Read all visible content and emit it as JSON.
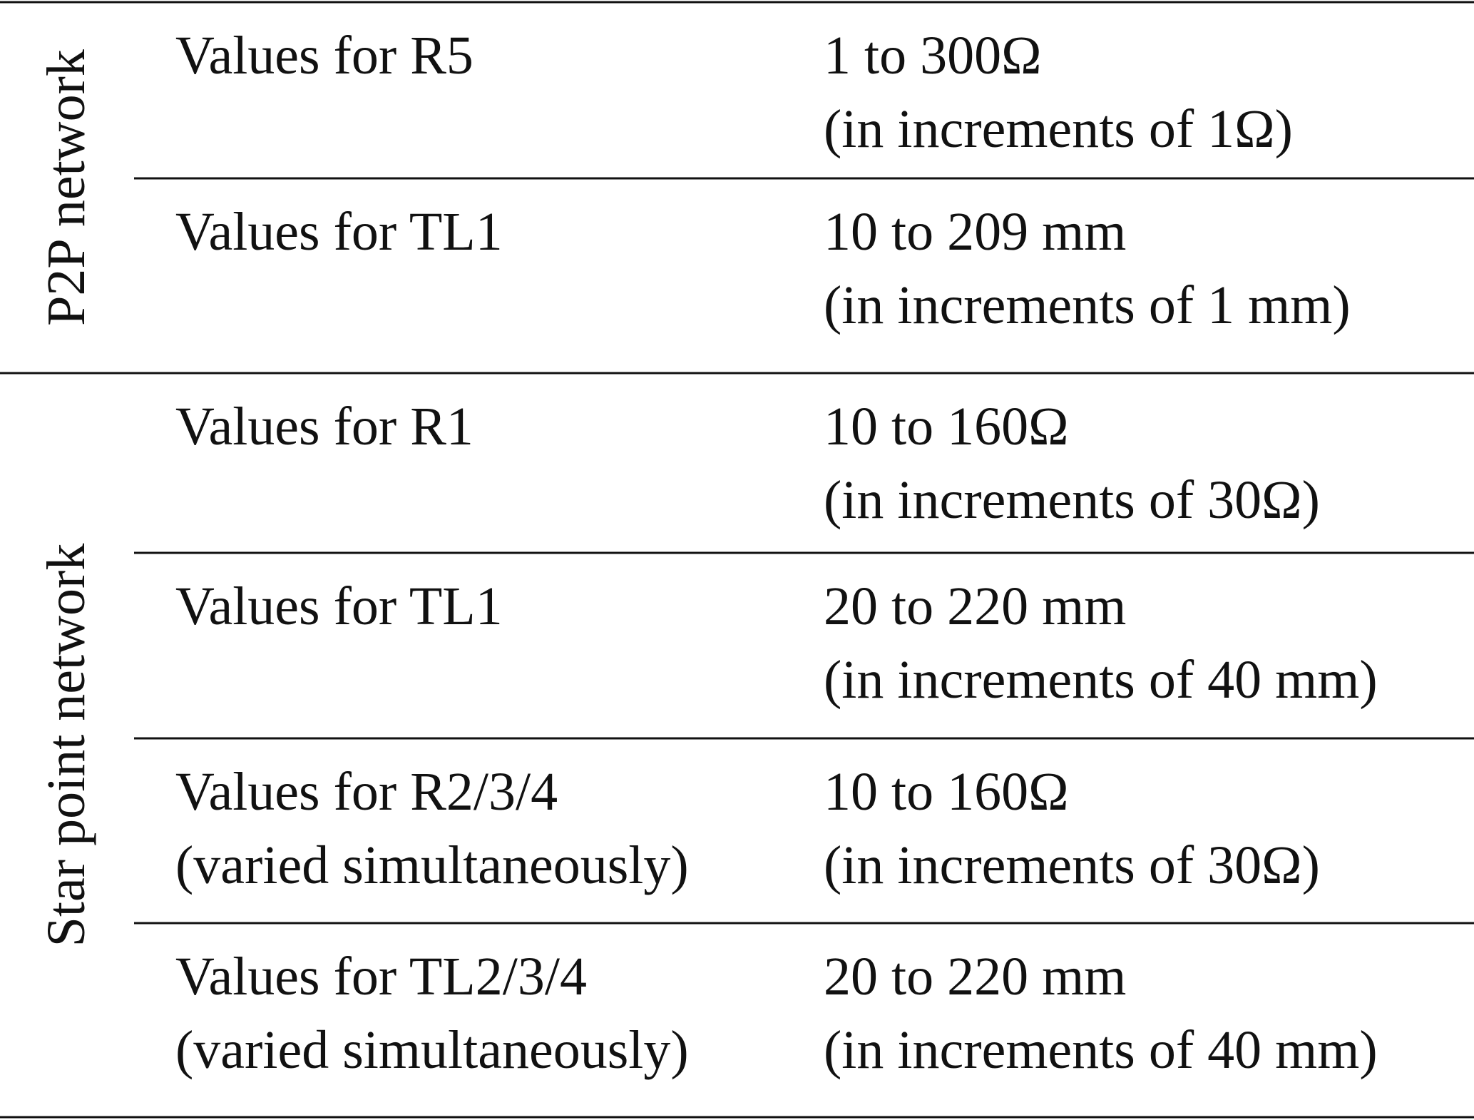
{
  "table": {
    "groups": [
      {
        "label": "P2P network",
        "rows": [
          {
            "parameter": [
              "Values for R5"
            ],
            "range": [
              "1 to 300Ω",
              "(in increments of 1Ω)"
            ]
          },
          {
            "parameter": [
              "Values for TL1"
            ],
            "range": [
              "10 to 209 mm",
              "(in increments of 1 mm)"
            ]
          }
        ]
      },
      {
        "label": "Star point network",
        "rows": [
          {
            "parameter": [
              "Values for R1"
            ],
            "range": [
              "10 to 160Ω",
              "(in increments of 30Ω)"
            ]
          },
          {
            "parameter": [
              "Values for TL1"
            ],
            "range": [
              "20 to 220 mm",
              "(in increments of 40 mm)"
            ]
          },
          {
            "parameter": [
              "Values for R2/3/4",
              "(varied simultaneously)"
            ],
            "range": [
              "10 to 160Ω",
              "(in increments of 30Ω)"
            ]
          },
          {
            "parameter": [
              "Values for TL2/3/4",
              "(varied simultaneously)"
            ],
            "range": [
              "20 to 220 mm",
              "(in increments of 40 mm)"
            ]
          }
        ]
      }
    ]
  }
}
